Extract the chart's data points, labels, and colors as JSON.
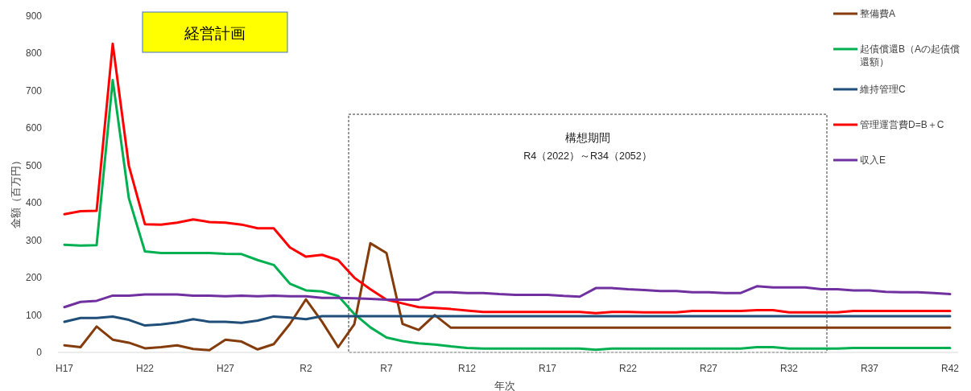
{
  "chart_data": {
    "type": "line",
    "title": "経営計画",
    "xlabel": "年次",
    "ylabel": "金額（百万円）",
    "categories": [
      "H17",
      null,
      null,
      null,
      null,
      "H22",
      null,
      null,
      null,
      null,
      "H27",
      null,
      null,
      null,
      null,
      "R2",
      null,
      null,
      null,
      null,
      "R7",
      null,
      null,
      null,
      null,
      "R12",
      null,
      null,
      null,
      null,
      "R17",
      null,
      null,
      null,
      null,
      "R22",
      null,
      null,
      null,
      null,
      "R27",
      null,
      null,
      null,
      null,
      "R32",
      null,
      null,
      null,
      null,
      "R37",
      null,
      null,
      null,
      null,
      "R42"
    ],
    "ylim": [
      0,
      900
    ],
    "yticks": [
      0,
      100,
      200,
      300,
      400,
      500,
      600,
      700,
      800,
      900
    ],
    "legend": "right",
    "series": [
      {
        "name": "整備費A",
        "color": "#843c0c",
        "values": [
          19,
          14,
          69,
          34,
          26,
          11,
          14,
          19,
          9,
          6,
          34,
          29,
          8,
          22,
          76,
          142,
          82,
          14,
          75,
          292,
          266,
          76,
          60,
          100,
          66,
          66,
          66,
          66,
          66,
          66,
          66,
          66,
          66,
          66,
          66,
          66,
          66,
          66,
          66,
          66,
          66,
          66,
          66,
          66,
          66,
          66,
          66,
          66,
          66,
          66,
          66,
          66,
          66,
          66,
          66,
          66
        ]
      },
      {
        "name": "起債償還B（Aの起債償還額）",
        "color": "#00b050",
        "values": [
          288,
          286,
          287,
          729,
          413,
          270,
          266,
          266,
          266,
          266,
          264,
          263,
          247,
          234,
          184,
          166,
          163,
          151,
          103,
          67,
          40,
          30,
          24,
          21,
          16,
          12,
          10,
          10,
          10,
          10,
          10,
          10,
          10,
          7,
          10,
          10,
          10,
          10,
          10,
          10,
          10,
          10,
          10,
          14,
          14,
          10,
          10,
          10,
          10,
          12,
          12,
          12,
          12,
          12,
          12,
          12
        ]
      },
      {
        "name": "維持管理C",
        "color": "#1f4e79",
        "values": [
          82,
          92,
          92,
          96,
          87,
          72,
          75,
          80,
          89,
          82,
          82,
          79,
          85,
          96,
          93,
          89,
          97,
          97,
          97,
          97,
          97,
          97,
          97,
          97,
          97,
          97,
          97,
          97,
          97,
          97,
          97,
          97,
          97,
          97,
          97,
          97,
          97,
          97,
          97,
          97,
          97,
          97,
          97,
          97,
          97,
          97,
          97,
          97,
          97,
          97,
          97,
          97,
          97,
          97,
          97,
          97
        ]
      },
      {
        "name": "管理運営費D=B＋C",
        "color": "#ff0000",
        "values": [
          370,
          378,
          379,
          826,
          500,
          343,
          342,
          347,
          356,
          349,
          347,
          342,
          332,
          332,
          281,
          256,
          261,
          247,
          200,
          169,
          141,
          131,
          121,
          119,
          116,
          112,
          108,
          108,
          108,
          108,
          108,
          108,
          108,
          105,
          108,
          108,
          107,
          107,
          107,
          111,
          111,
          111,
          111,
          113,
          113,
          107,
          107,
          107,
          107,
          111,
          111,
          111,
          111,
          111,
          111,
          111
        ]
      },
      {
        "name": "収入E",
        "color": "#7030a0",
        "values": [
          121,
          135,
          138,
          152,
          152,
          155,
          155,
          155,
          152,
          152,
          150,
          152,
          150,
          152,
          150,
          150,
          146,
          146,
          145,
          143,
          141,
          141,
          141,
          161,
          161,
          159,
          159,
          156,
          154,
          154,
          154,
          151,
          149,
          172,
          172,
          169,
          167,
          164,
          164,
          161,
          161,
          159,
          159,
          177,
          174,
          174,
          174,
          169,
          169,
          166,
          166,
          162,
          161,
          161,
          159,
          156
        ]
      }
    ],
    "annotations": [
      "構想期間",
      "R4（2022）～R34（2052）"
    ]
  }
}
